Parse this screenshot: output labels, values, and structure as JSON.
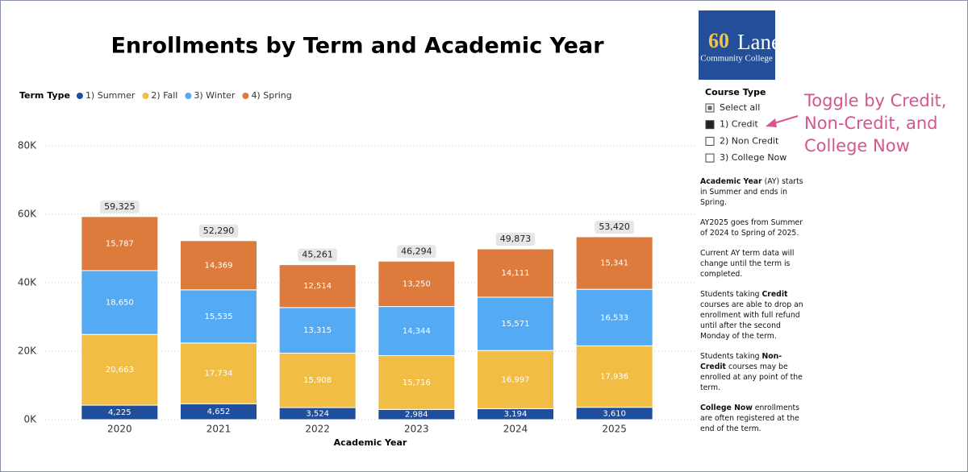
{
  "chart_data": {
    "type": "stacked-bar",
    "title": "Enrollments by Term and Academic Year",
    "legend_title": "Term Type",
    "legend": "top-left",
    "x_label": "Academic Year",
    "categories": [
      "2020",
      "2021",
      "2022",
      "2023",
      "2024",
      "2025"
    ],
    "series": [
      {
        "name": "1) Summer",
        "color": "#1f4e9c",
        "values": [
          4225,
          4652,
          3524,
          2984,
          3194,
          3610
        ],
        "value_labels": [
          "4,225",
          "4,652",
          "3,524",
          "2,984",
          "3,194",
          "3,610"
        ]
      },
      {
        "name": "2) Fall",
        "color": "#f2bd45",
        "values": [
          20663,
          17734,
          15908,
          15716,
          16997,
          17936
        ],
        "value_labels": [
          "20,663",
          "17,734",
          "15,908",
          "15,716",
          "16,997",
          "17,936"
        ]
      },
      {
        "name": "3) Winter",
        "color": "#55aaf4",
        "values": [
          18650,
          15535,
          13315,
          14344,
          15571,
          16533
        ],
        "value_labels": [
          "18,650",
          "15,535",
          "13,315",
          "14,344",
          "15,571",
          "16,533"
        ]
      },
      {
        "name": "4) Spring",
        "color": "#dc7b3b",
        "values": [
          15787,
          14369,
          12514,
          13250,
          14111,
          15341
        ],
        "value_labels": [
          "15,787",
          "14,369",
          "12,514",
          "13,250",
          "14,111",
          "15,341"
        ]
      }
    ],
    "totals": [
      59325,
      52290,
      45261,
      46294,
      49873,
      53420
    ],
    "total_labels": [
      "59,325",
      "52,290",
      "45,261",
      "46,294",
      "49,873",
      "53,420"
    ],
    "ylim": [
      0,
      80000
    ],
    "yticks": [
      {
        "value": 0,
        "label": "0K"
      },
      {
        "value": 20000,
        "label": "20K"
      },
      {
        "value": 40000,
        "label": "40K"
      },
      {
        "value": 60000,
        "label": "60K"
      },
      {
        "value": 80000,
        "label": "80K"
      }
    ],
    "grid": true
  },
  "logo": {
    "number": "60",
    "name": "Lane",
    "subtitle": "Community College"
  },
  "slicer": {
    "title": "Course Type",
    "items": [
      {
        "label": "Select all",
        "state": "partial"
      },
      {
        "label": "1) Credit",
        "state": "checked"
      },
      {
        "label": "2) Non Credit",
        "state": "unchecked"
      },
      {
        "label": "3) College Now",
        "state": "unchecked"
      }
    ]
  },
  "annotation": [
    "Toggle by Credit,",
    "Non-Credit, and",
    "College Now"
  ],
  "notes": [
    [
      {
        "text": "Academic Year",
        "bold": true
      },
      {
        "text": " (AY) starts in Summer and ends in Spring."
      }
    ],
    [
      {
        "text": "AY2025 goes from Summer of 2024 to Spring of 2025."
      }
    ],
    [
      {
        "text": "Current AY term data will change until the term is completed."
      }
    ],
    [
      {
        "text": "Students taking "
      },
      {
        "text": "Credit",
        "bold": true
      },
      {
        "text": " courses are able to drop an enrollment with full refund until after the second Monday of the term."
      }
    ],
    [
      {
        "text": "Students taking "
      },
      {
        "text": "Non-Credit",
        "bold": true
      },
      {
        "text": " courses may be enrolled at any point of the term."
      }
    ],
    [
      {
        "text": "College Now",
        "bold": true
      },
      {
        "text": " enrollments are often registered at the end of the term."
      }
    ]
  ]
}
